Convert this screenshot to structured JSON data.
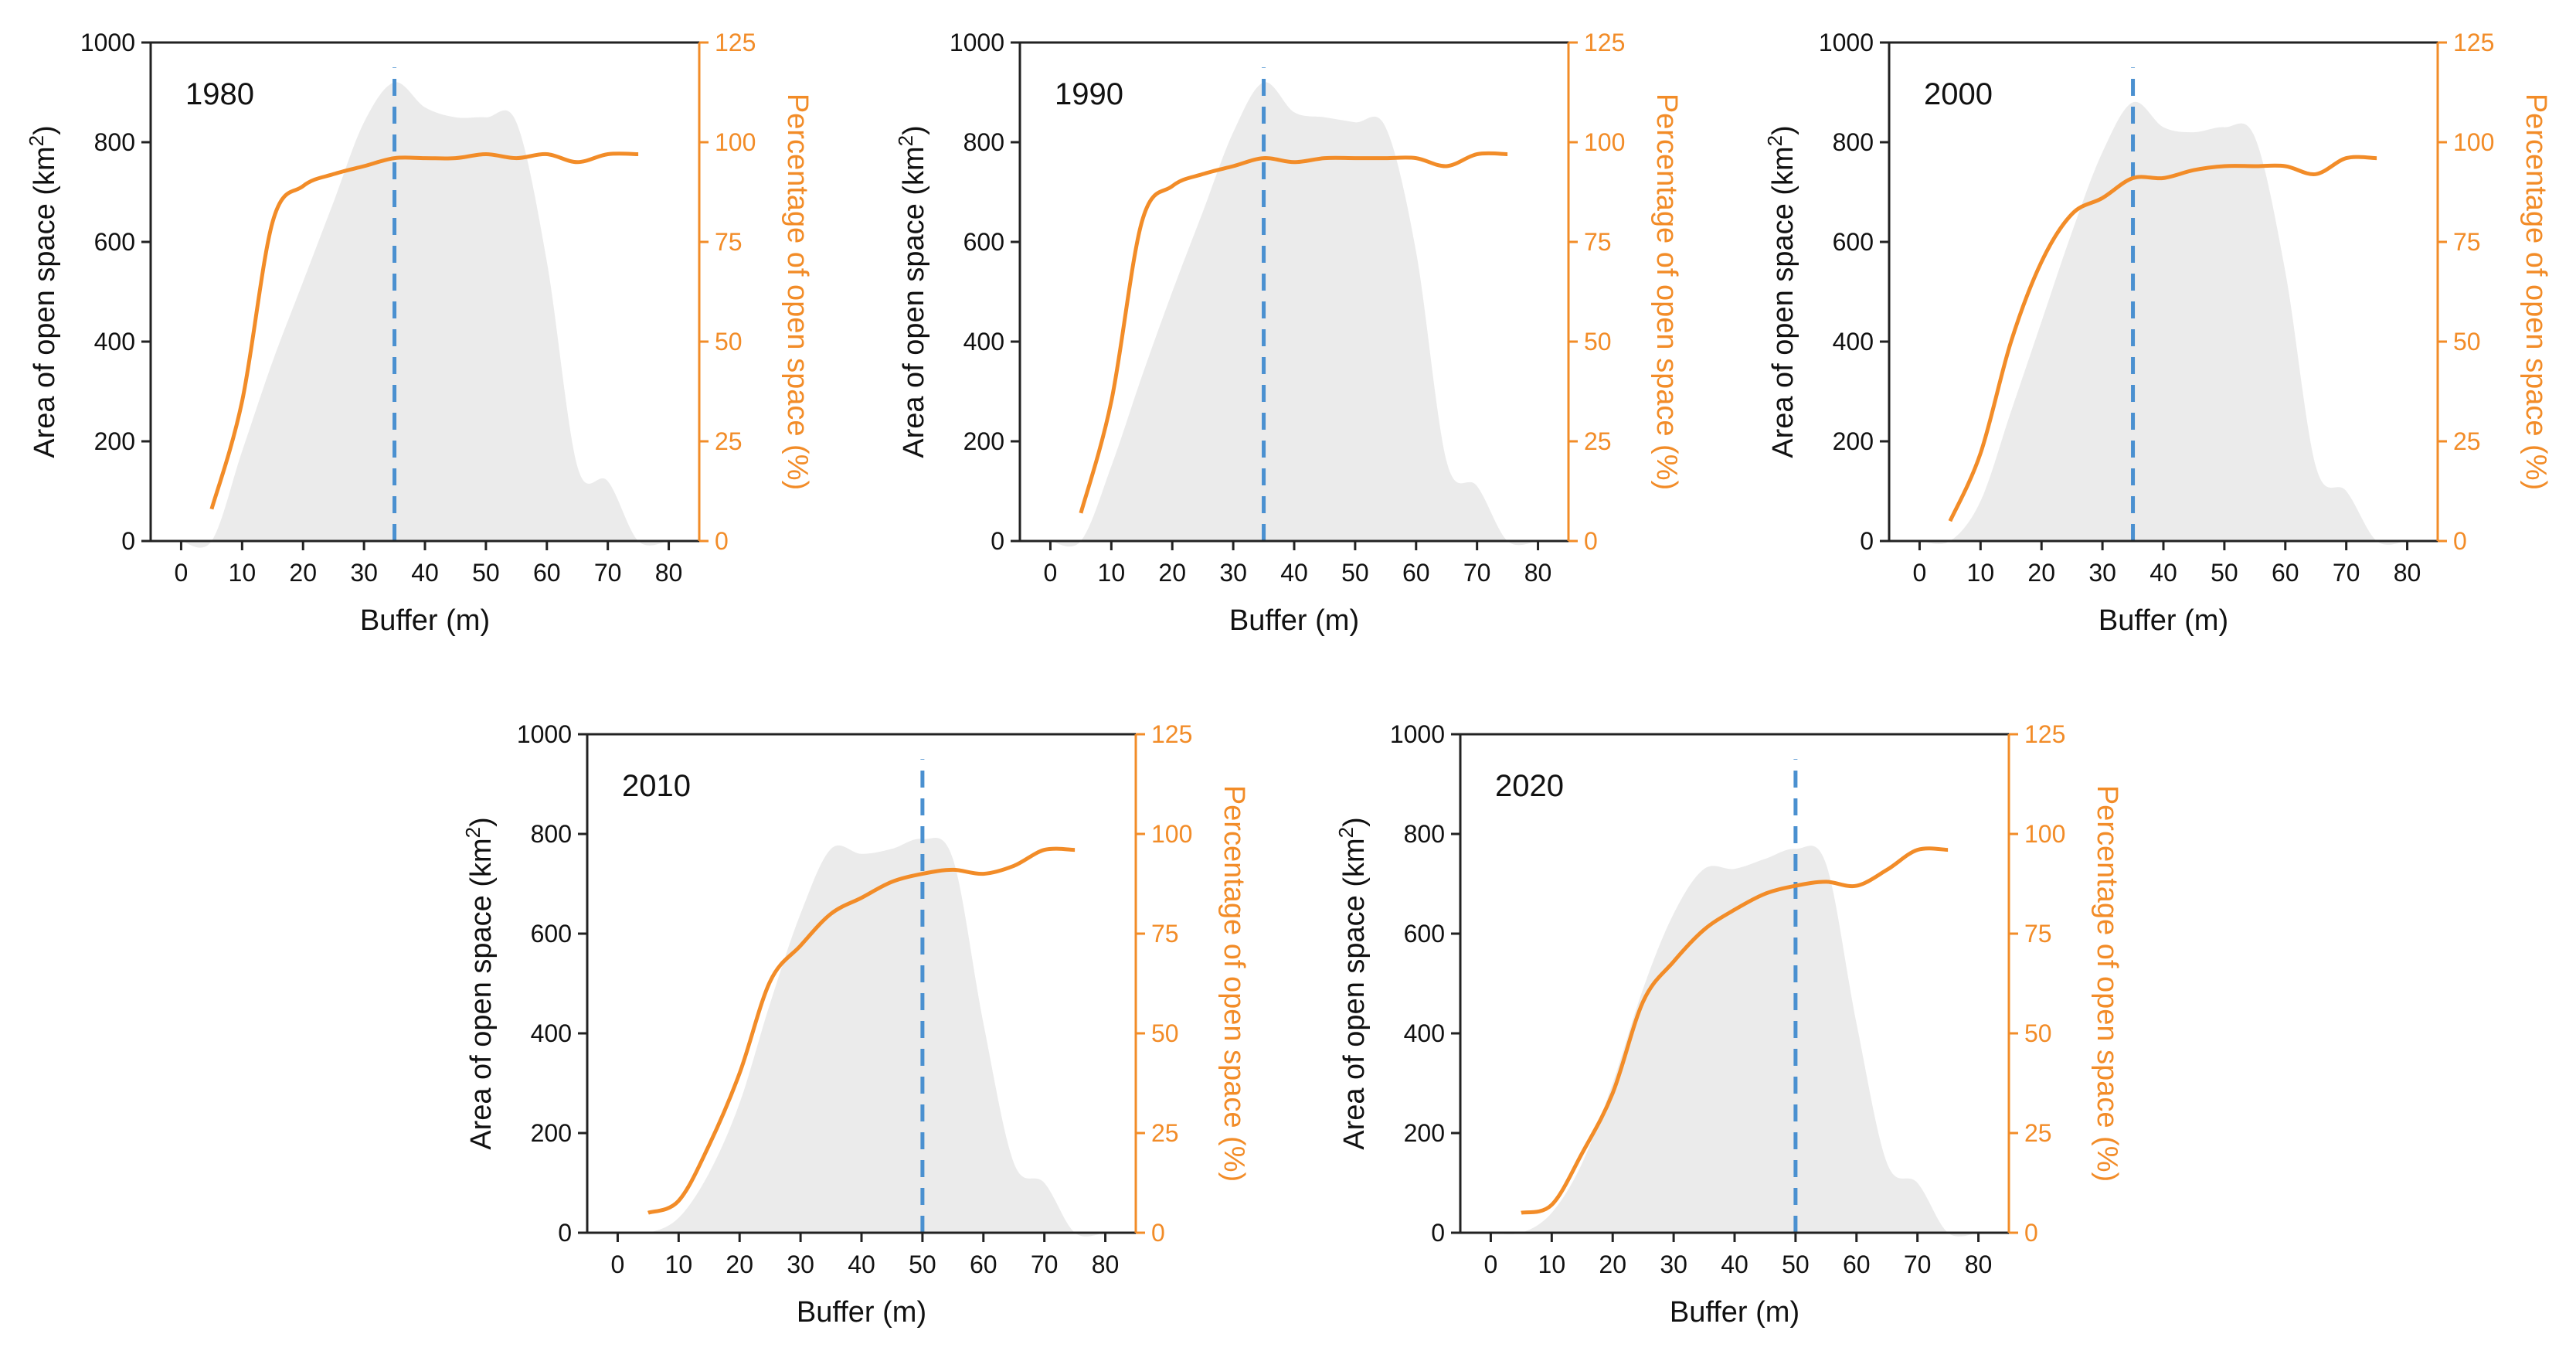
{
  "figure": {
    "colors": {
      "area_fill": "#ebebeb",
      "percent_line": "#f28c28",
      "threshold_line": "#4a90d0",
      "axis": "#222222",
      "right_axis": "#f28c28"
    }
  },
  "chart_data": [
    {
      "type": "area+line",
      "title": "1980",
      "xlabel": "Buffer (m)",
      "ylabel_left": "Area of open space (km",
      "ylabel_left_sup": "2",
      "ylabel_left_end": ")",
      "ylabel_right": "Percentage of open space (%)",
      "xlim": [
        -5,
        85
      ],
      "ylim_left": [
        0,
        1000
      ],
      "ylim_right": [
        0,
        125
      ],
      "x_ticks": [
        "0",
        "10",
        "20",
        "30",
        "40",
        "50",
        "60",
        "70",
        "80"
      ],
      "y_left_ticks": [
        "0",
        "200",
        "400",
        "600",
        "800",
        "1000"
      ],
      "y_right_ticks": [
        "0",
        "25",
        "50",
        "75",
        "100",
        "125"
      ],
      "threshold_x": 35,
      "area": {
        "x": [
          0,
          5,
          10,
          15,
          20,
          25,
          30,
          35,
          40,
          45,
          50,
          55,
          60,
          65,
          70,
          75,
          80
        ],
        "y": [
          0,
          0,
          180,
          360,
          520,
          680,
          840,
          920,
          870,
          850,
          850,
          840,
          560,
          150,
          120,
          0,
          0
        ]
      },
      "percent": {
        "x": [
          5,
          10,
          15,
          20,
          25,
          30,
          35,
          40,
          45,
          50,
          55,
          60,
          65,
          70,
          75
        ],
        "y": [
          8,
          35,
          80,
          89,
          92,
          94,
          96,
          96,
          96,
          97,
          96,
          97,
          95,
          97,
          97
        ]
      }
    },
    {
      "type": "area+line",
      "title": "1990",
      "xlabel": "Buffer (m)",
      "ylabel_left": "Area of open space (km",
      "ylabel_left_sup": "2",
      "ylabel_left_end": ")",
      "ylabel_right": "Percentage of open space (%)",
      "xlim": [
        -5,
        85
      ],
      "ylim_left": [
        0,
        1000
      ],
      "ylim_right": [
        0,
        125
      ],
      "x_ticks": [
        "0",
        "10",
        "20",
        "30",
        "40",
        "50",
        "60",
        "70",
        "80"
      ],
      "y_left_ticks": [
        "0",
        "200",
        "400",
        "600",
        "800",
        "1000"
      ],
      "y_right_ticks": [
        "0",
        "25",
        "50",
        "75",
        "100",
        "125"
      ],
      "threshold_x": 35,
      "area": {
        "x": [
          0,
          5,
          10,
          15,
          20,
          25,
          30,
          35,
          40,
          45,
          50,
          55,
          60,
          65,
          70,
          75,
          80
        ],
        "y": [
          0,
          0,
          150,
          330,
          500,
          660,
          820,
          920,
          860,
          850,
          840,
          830,
          580,
          160,
          110,
          0,
          0
        ]
      },
      "percent": {
        "x": [
          5,
          10,
          15,
          20,
          25,
          30,
          35,
          40,
          45,
          50,
          55,
          60,
          65,
          70,
          75
        ],
        "y": [
          7,
          35,
          80,
          89,
          92,
          94,
          96,
          95,
          96,
          96,
          96,
          96,
          94,
          97,
          97
        ]
      }
    },
    {
      "type": "area+line",
      "title": "2000",
      "xlabel": "Buffer (m)",
      "ylabel_left": "Area of open space (km",
      "ylabel_left_sup": "2",
      "ylabel_left_end": ")",
      "ylabel_right": "Percentage of open space (%)",
      "xlim": [
        -5,
        85
      ],
      "ylim_left": [
        0,
        1000
      ],
      "ylim_right": [
        0,
        125
      ],
      "x_ticks": [
        "0",
        "10",
        "20",
        "30",
        "40",
        "50",
        "60",
        "70",
        "80"
      ],
      "y_left_ticks": [
        "0",
        "200",
        "400",
        "600",
        "800",
        "1000"
      ],
      "y_right_ticks": [
        "0",
        "25",
        "50",
        "75",
        "100",
        "125"
      ],
      "threshold_x": 35,
      "area": {
        "x": [
          0,
          5,
          10,
          15,
          20,
          25,
          30,
          35,
          40,
          45,
          50,
          55,
          60,
          65,
          70,
          75,
          80
        ],
        "y": [
          0,
          0,
          80,
          260,
          440,
          620,
          780,
          880,
          830,
          820,
          830,
          810,
          540,
          150,
          100,
          0,
          0
        ]
      },
      "percent": {
        "x": [
          5,
          10,
          15,
          20,
          25,
          30,
          35,
          40,
          45,
          50,
          55,
          60,
          65,
          70,
          75
        ],
        "y": [
          5,
          22,
          50,
          70,
          82,
          86,
          91,
          91,
          93,
          94,
          94,
          94,
          92,
          96,
          96
        ]
      }
    },
    {
      "type": "area+line",
      "title": "2010",
      "xlabel": "Buffer (m)",
      "ylabel_left": "Area of open space (km",
      "ylabel_left_sup": "2",
      "ylabel_left_end": ")",
      "ylabel_right": "Percentage of open space (%)",
      "xlim": [
        -5,
        85
      ],
      "ylim_left": [
        0,
        1000
      ],
      "ylim_right": [
        0,
        125
      ],
      "x_ticks": [
        "0",
        "10",
        "20",
        "30",
        "40",
        "50",
        "60",
        "70",
        "80"
      ],
      "y_left_ticks": [
        "0",
        "200",
        "400",
        "600",
        "800",
        "1000"
      ],
      "y_right_ticks": [
        "0",
        "25",
        "50",
        "75",
        "100",
        "125"
      ],
      "threshold_x": 50,
      "area": {
        "x": [
          0,
          5,
          10,
          15,
          20,
          25,
          30,
          35,
          40,
          45,
          50,
          55,
          60,
          65,
          70,
          75,
          80
        ],
        "y": [
          0,
          0,
          30,
          120,
          260,
          460,
          640,
          770,
          760,
          770,
          790,
          750,
          420,
          140,
          100,
          0,
          0
        ]
      },
      "percent": {
        "x": [
          5,
          10,
          15,
          20,
          25,
          30,
          35,
          40,
          45,
          50,
          55,
          60,
          65,
          70,
          75
        ],
        "y": [
          5,
          8,
          22,
          40,
          63,
          72,
          80,
          84,
          88,
          90,
          91,
          90,
          92,
          96,
          96
        ]
      }
    },
    {
      "type": "area+line",
      "title": "2020",
      "xlabel": "Buffer (m)",
      "ylabel_left": "Area of open space (km",
      "ylabel_left_sup": "2",
      "ylabel_left_end": ")",
      "ylabel_right": "Percentage of open space (%)",
      "xlim": [
        -5,
        85
      ],
      "ylim_left": [
        0,
        1000
      ],
      "ylim_right": [
        0,
        125
      ],
      "x_ticks": [
        "0",
        "10",
        "20",
        "30",
        "40",
        "50",
        "60",
        "70",
        "80"
      ],
      "y_left_ticks": [
        "0",
        "200",
        "400",
        "600",
        "800",
        "1000"
      ],
      "y_right_ticks": [
        "0",
        "25",
        "50",
        "75",
        "100",
        "125"
      ],
      "threshold_x": 50,
      "area": {
        "x": [
          0,
          5,
          10,
          15,
          20,
          25,
          30,
          35,
          40,
          45,
          50,
          55,
          60,
          65,
          70,
          75,
          80
        ],
        "y": [
          0,
          0,
          40,
          140,
          300,
          490,
          640,
          730,
          730,
          750,
          770,
          740,
          420,
          140,
          100,
          0,
          0
        ]
      },
      "percent": {
        "x": [
          5,
          10,
          15,
          20,
          25,
          30,
          35,
          40,
          45,
          50,
          55,
          60,
          65,
          70,
          75
        ],
        "y": [
          5,
          7,
          20,
          35,
          58,
          68,
          76,
          81,
          85,
          87,
          88,
          87,
          91,
          96,
          96
        ]
      }
    }
  ]
}
